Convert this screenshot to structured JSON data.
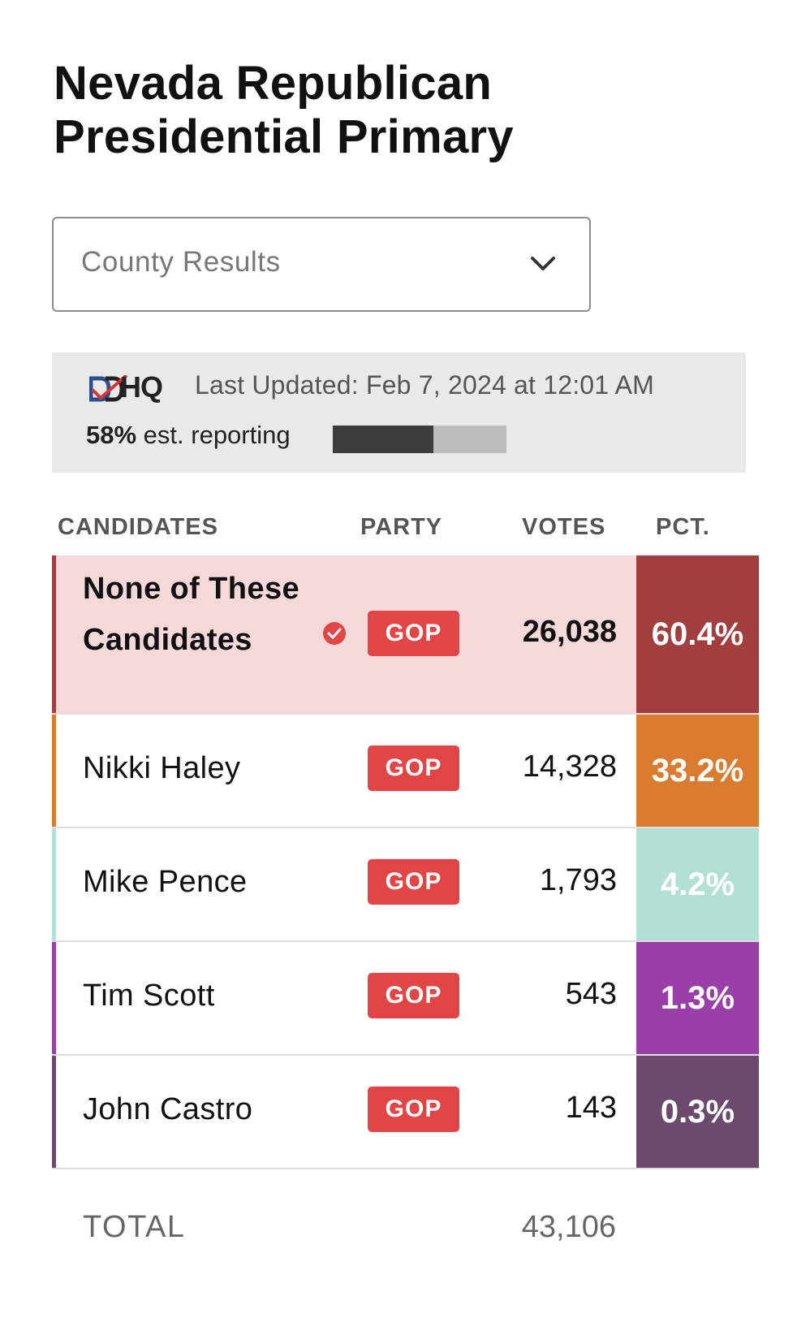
{
  "title_line1": "Nevada Republican",
  "title_line2": "Presidential Primary",
  "dropdown": {
    "selected": "County Results",
    "icon": "chevron-down-icon"
  },
  "status": {
    "logo_text": "HQ",
    "last_updated": "Last Updated: Feb 7, 2024 at 12:01 AM",
    "reporting_pct_label": "58%",
    "reporting_suffix": "est. reporting",
    "reporting_fraction": 0.58
  },
  "columns": {
    "candidates": "CANDIDATES",
    "party": "PARTY",
    "votes": "VOTES",
    "pct": "PCT."
  },
  "rows": [
    {
      "name": "None of These Candidates",
      "party": "GOP",
      "votes": "26,038",
      "pct": "60.4%",
      "color": "#a33e3e",
      "accent": "#a33e3e",
      "bg": "#f5d9da",
      "winner": true
    },
    {
      "name": "Nikki Haley",
      "party": "GOP",
      "votes": "14,328",
      "pct": "33.2%",
      "color": "#d97c2f",
      "accent": "#d97c2f",
      "bg": "#ffffff",
      "winner": false
    },
    {
      "name": "Mike Pence",
      "party": "GOP",
      "votes": "1,793",
      "pct": "4.2%",
      "color": "#b3e0d6",
      "accent": "#b3e0d6",
      "bg": "#ffffff",
      "winner": false
    },
    {
      "name": "Tim Scott",
      "party": "GOP",
      "votes": "543",
      "pct": "1.3%",
      "color": "#9a3fa8",
      "accent": "#9a3fa8",
      "bg": "#ffffff",
      "winner": false
    },
    {
      "name": "John Castro",
      "party": "GOP",
      "votes": "143",
      "pct": "0.3%",
      "color": "#6b4a6e",
      "accent": "#6b4a6e",
      "bg": "#ffffff",
      "winner": false
    }
  ],
  "total": {
    "label": "TOTAL",
    "value": "43,106"
  }
}
